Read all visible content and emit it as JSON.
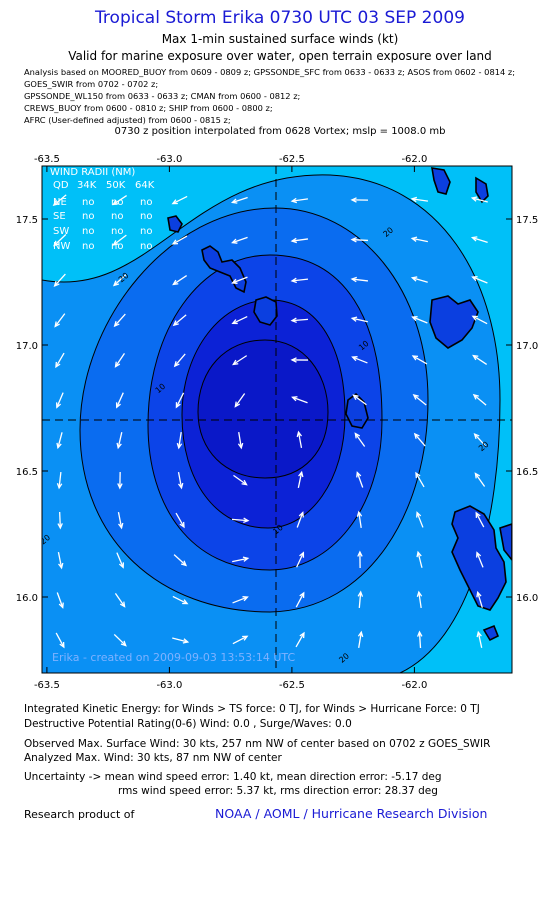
{
  "header": {
    "title": "Tropical Storm Erika 0730 UTC 03 SEP 2009",
    "subtitle1": "Max 1-min sustained surface winds (kt)",
    "subtitle2": "Valid for marine exposure over water, open terrain exposure over land",
    "sources": [
      "Analysis based on  MOORED_BUOY from 0609 - 0809 z;  GPSSONDE_SFC from 0633 - 0633 z;  ASOS from 0602 - 0814 z;",
      "GOES_SWIR from 0702 - 0702 z;",
      "GPSSONDE_WL150 from 0633 - 0633 z;  CMAN from 0600 - 0812 z;",
      "CREWS_BUOY from 0600 - 0810 z;  SHIP from 0600 - 0800 z;",
      "AFRC (User-defined adjusted) from 0600 - 0815 z;"
    ],
    "position_line": "0730 z position interpolated from 0628 Vortex; mslp = 1008.0 mb"
  },
  "map": {
    "lon_ticks": [
      "-63.5",
      "-63.0",
      "-62.5",
      "-62.0"
    ],
    "lat_ticks": [
      "17.5",
      "17.0",
      "16.5",
      "16.0"
    ],
    "center": {
      "lon": -62.55,
      "lat": 16.72
    },
    "contour_labels": [
      {
        "text": "20",
        "lon": -62.1,
        "lat": 17.44
      },
      {
        "text": "20",
        "lon": -63.18,
        "lat": 17.26
      },
      {
        "text": "10",
        "lon": -62.2,
        "lat": 16.99
      },
      {
        "text": "10",
        "lon": -63.03,
        "lat": 16.82
      },
      {
        "text": "10",
        "lon": -62.55,
        "lat": 16.26
      },
      {
        "text": "20",
        "lon": -61.71,
        "lat": 16.59
      },
      {
        "text": "20",
        "lon": -63.5,
        "lat": 16.22
      },
      {
        "text": "20",
        "lon": -62.28,
        "lat": 15.75
      }
    ],
    "credit": "Erika - created on 2009-09-03 13:53:14 UTC",
    "colors": {
      "shade1": "#00c0f8",
      "shade2": "#0a90f4",
      "shade3": "#0a6cf0",
      "shade4": "#0c44e8",
      "shade5": "#0c22d6",
      "land": "#0b3fe0",
      "arrow": "#ffffff"
    }
  },
  "wind_radii": {
    "title": "WIND RADII (NM)",
    "columns": [
      "QD",
      "34K",
      "50K",
      "64K"
    ],
    "rows": [
      {
        "qd": "NE",
        "v34": "no",
        "v50": "no",
        "v64": "no"
      },
      {
        "qd": "SE",
        "v34": "no",
        "v50": "no",
        "v64": "no"
      },
      {
        "qd": "SW",
        "v34": "no",
        "v50": "no",
        "v64": "no"
      },
      {
        "qd": "NW",
        "v34": "no",
        "v50": "no",
        "v64": "no"
      }
    ]
  },
  "footer": {
    "ike_line": "Integrated Kinetic Energy:  for Winds > TS force: 0 TJ,  for Winds > Hurricane Force: 0 TJ",
    "dpr_line": "Destructive Potential Rating(0-6)   Wind: 0.0 , Surge/Waves: 0.0",
    "obs_line": "Observed Max. Surface Wind: 30 kts, 257 nm NW of center based on 0702 z GOES_SWIR",
    "analyzed_line": "Analyzed Max. Wind: 30 kts, 87 nm NW of center",
    "uncert_line1": "Uncertainty -> mean wind speed error: 1.40 kt,   mean direction error:  -5.17 deg",
    "uncert_line2": "rms wind speed error: 5.37 kt,   rms direction error: 28.37 deg",
    "research_label": "Research product of",
    "org": "NOAA / AOML / Hurricane Research Division"
  }
}
